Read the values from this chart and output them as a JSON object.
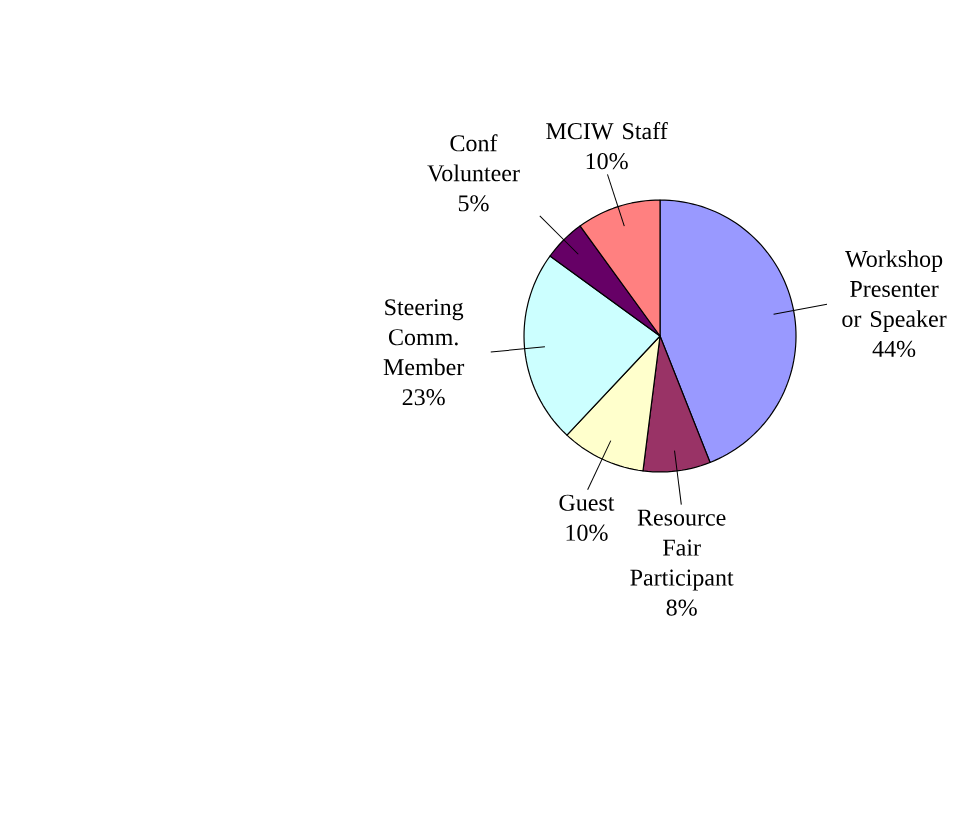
{
  "chart_data": {
    "type": "pie",
    "categories": [
      "Workshop Presenter or Speaker",
      "Resource Fair Participant",
      "Guest",
      "Steering Comm. Member",
      "Conf Volunteer",
      "MCIW Staff"
    ],
    "values": [
      44,
      8,
      10,
      23,
      5,
      10
    ],
    "value_labels": [
      "44%",
      "8%",
      "10%",
      "23%",
      "5%",
      "10%"
    ],
    "colors": [
      "#9999ff",
      "#993366",
      "#ffffcc",
      "#ccffff",
      "#660066",
      "#ff8080"
    ]
  }
}
